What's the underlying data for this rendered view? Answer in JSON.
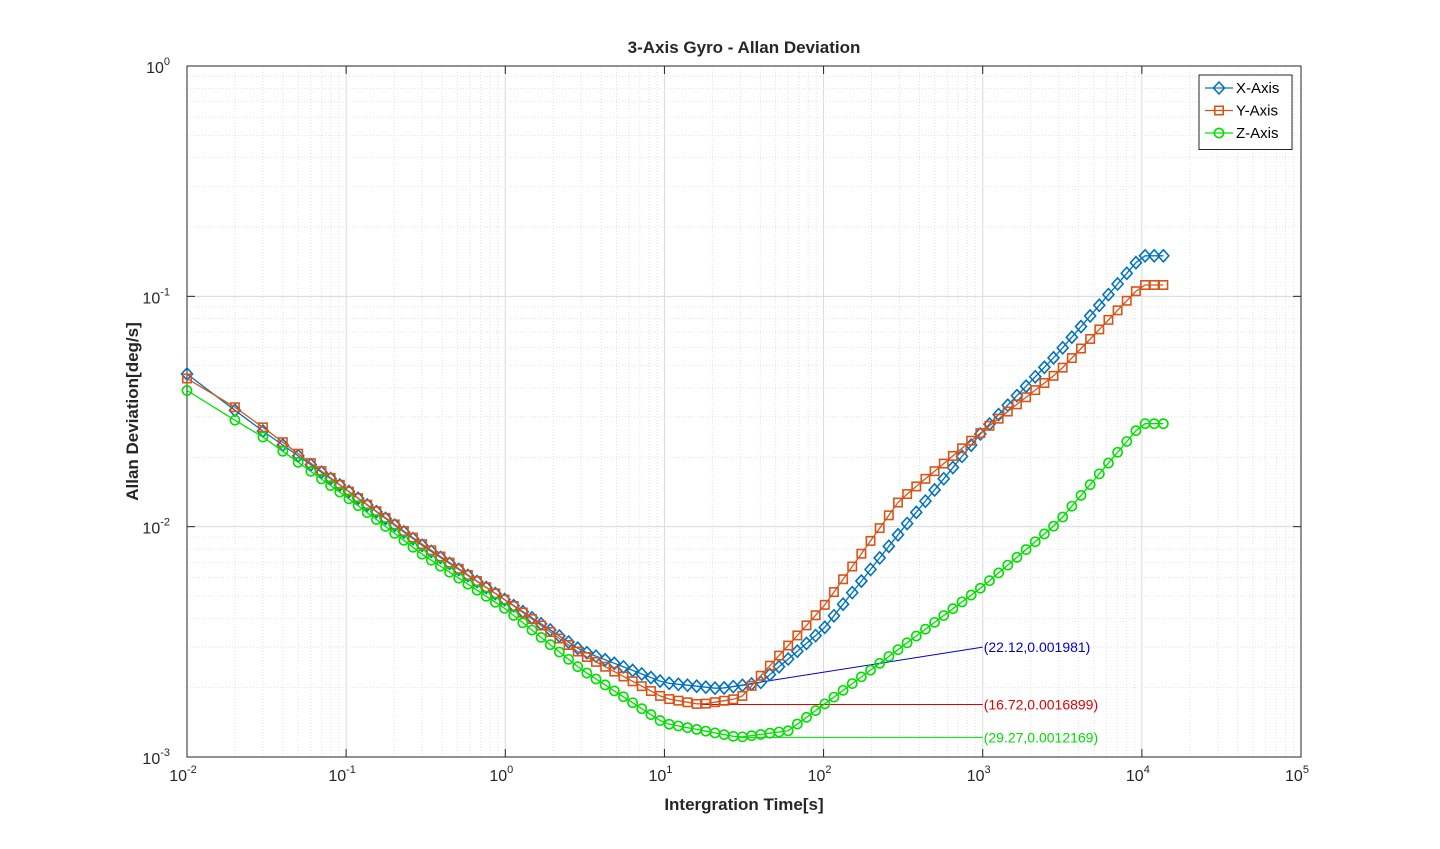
{
  "chart_data": {
    "type": "line",
    "title": "3-Axis Gyro - Allan Deviation",
    "xlabel": "Intergration Time[s]",
    "ylabel": "Allan Deviation[deg/s]",
    "xscale": "log",
    "yscale": "log",
    "xlim": [
      0.01,
      100000
    ],
    "ylim": [
      0.001,
      1
    ],
    "grid": true,
    "minor_grid": true,
    "legend_position": "top-right",
    "x_ticks": [
      {
        "base": "10",
        "exp": "-2"
      },
      {
        "base": "10",
        "exp": "-1"
      },
      {
        "base": "10",
        "exp": "0"
      },
      {
        "base": "10",
        "exp": "1"
      },
      {
        "base": "10",
        "exp": "2"
      },
      {
        "base": "10",
        "exp": "3"
      },
      {
        "base": "10",
        "exp": "4"
      },
      {
        "base": "10",
        "exp": "5"
      }
    ],
    "y_ticks": [
      {
        "base": "10",
        "exp": "-3"
      },
      {
        "base": "10",
        "exp": "-2"
      },
      {
        "base": "10",
        "exp": "-1"
      },
      {
        "base": "10",
        "exp": "0"
      }
    ],
    "series": [
      {
        "name": "X-Axis",
        "color": "#0072BD",
        "marker": "diamond",
        "taus": [
          0.01,
          0.02,
          0.03,
          0.1,
          0.3,
          1,
          3,
          10,
          22.12,
          40,
          100,
          300,
          1000,
          3000,
          10000
        ],
        "values": [
          0.046,
          0.032,
          0.026,
          0.0145,
          0.0083,
          0.0048,
          0.0029,
          0.0021,
          0.001981,
          0.0021,
          0.0036,
          0.0094,
          0.026,
          0.057,
          0.15
        ]
      },
      {
        "name": "Y-Axis",
        "color": "#D95319",
        "marker": "square",
        "taus": [
          0.01,
          0.02,
          0.03,
          0.1,
          0.3,
          1,
          3,
          10,
          16.72,
          30,
          100,
          300,
          1000,
          3000,
          10000
        ],
        "values": [
          0.044,
          0.033,
          0.027,
          0.0145,
          0.0084,
          0.0048,
          0.0028,
          0.0018,
          0.0016899,
          0.0018,
          0.0045,
          0.013,
          0.026,
          0.047,
          0.112
        ]
      },
      {
        "name": "Z-Axis",
        "color": "#00E000",
        "marker": "circle",
        "taus": [
          0.01,
          0.02,
          0.03,
          0.1,
          0.3,
          1,
          3,
          10,
          29.27,
          60,
          200,
          1000,
          3000,
          10000
        ],
        "values": [
          0.039,
          0.029,
          0.0245,
          0.0135,
          0.0076,
          0.0044,
          0.0024,
          0.0014,
          0.0012169,
          0.0013,
          0.0024,
          0.0055,
          0.0105,
          0.028
        ]
      }
    ],
    "annotations": [
      {
        "text": "(22.12,0.001981)",
        "color": "#0000CC",
        "from": [
          22.12,
          0.001981
        ],
        "to": [
          1000,
          0.003
        ]
      },
      {
        "text": "(16.72,0.0016899)",
        "color": "#E00000",
        "from": [
          16.72,
          0.0016899
        ],
        "to": [
          1000,
          0.0016899
        ]
      },
      {
        "text": "(29.27,0.0012169)",
        "color": "#00DD00",
        "from": [
          29.27,
          0.0012169
        ],
        "to": [
          1000,
          0.0012169
        ]
      }
    ]
  }
}
